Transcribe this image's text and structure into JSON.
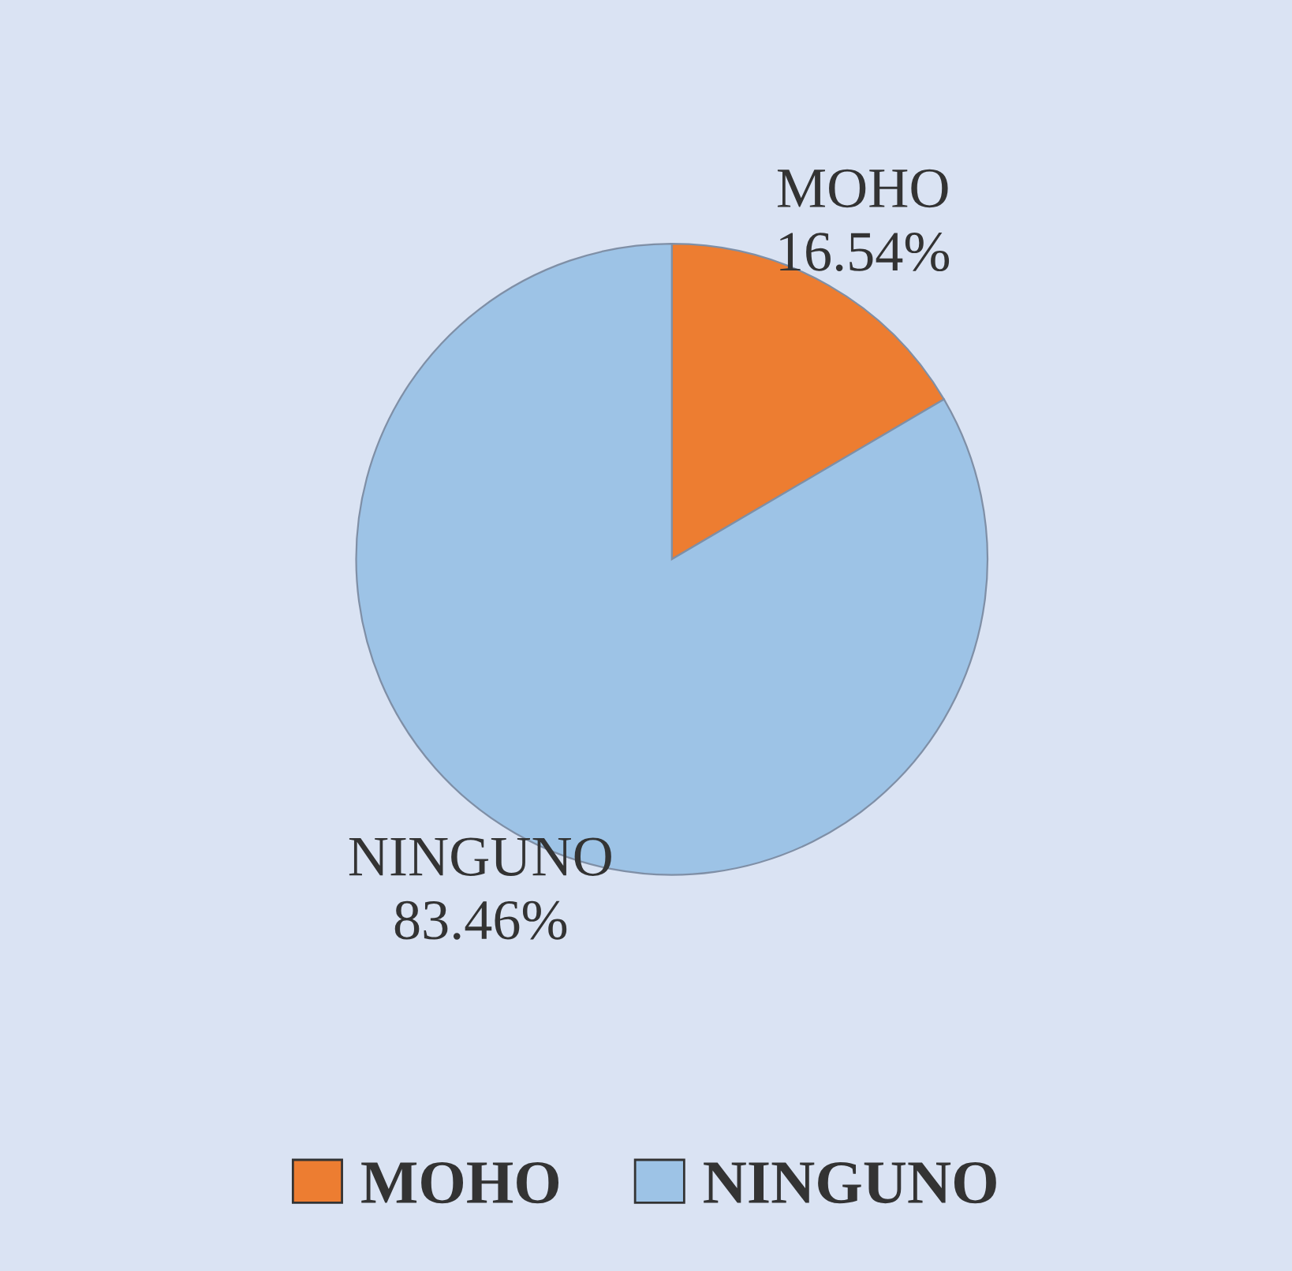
{
  "chart_data": {
    "type": "pie",
    "categories": [
      "MOHO",
      "NINGUNO"
    ],
    "values": [
      16.54,
      83.46
    ],
    "value_labels": [
      "16.54%",
      "83.46%"
    ],
    "colors": [
      "#ed7d31",
      "#9dc3e6"
    ],
    "legend": "bottom"
  }
}
